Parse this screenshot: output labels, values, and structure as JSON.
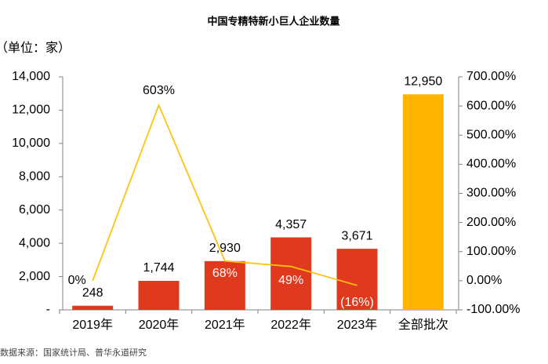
{
  "chart_data": {
    "type": "bar",
    "title": "中国专精特新小巨人企业数量",
    "unit_label": "（单位：家）",
    "source": "数据来源：国家统计局、普华永道研究",
    "categories": [
      "2019年",
      "2020年",
      "2021年",
      "2022年",
      "2023年",
      "全部批次"
    ],
    "series": [
      {
        "type": "bar",
        "colors": [
          "#e03a1e",
          "#e03a1e",
          "#e03a1e",
          "#e03a1e",
          "#e03a1e",
          "#ffb400"
        ],
        "values": [
          248,
          1744,
          2930,
          4357,
          3671,
          12950
        ],
        "value_labels": [
          "248",
          "1,744",
          "2,930",
          "4,357",
          "3,671",
          "12,950"
        ]
      },
      {
        "type": "line",
        "axis": "y2",
        "color": "#ffc20e",
        "values": [
          0,
          603,
          68,
          49,
          -16,
          null
        ],
        "value_labels": [
          "0%",
          "603%",
          "68%",
          "49%",
          "(16%)",
          null
        ]
      }
    ],
    "ylim": [
      0,
      14000
    ],
    "yticks": [
      {
        "value": 0,
        "label": "-"
      },
      {
        "value": 2000,
        "label": "2,000"
      },
      {
        "value": 4000,
        "label": "4,000"
      },
      {
        "value": 6000,
        "label": "6,000"
      },
      {
        "value": 8000,
        "label": "8,000"
      },
      {
        "value": 10000,
        "label": "10,000"
      },
      {
        "value": 12000,
        "label": "12,000"
      },
      {
        "value": 14000,
        "label": "14,000"
      }
    ],
    "y2lim": [
      -100,
      700
    ],
    "y2ticks": [
      {
        "value": -100,
        "label": "-100.00%"
      },
      {
        "value": 0,
        "label": "0.00%"
      },
      {
        "value": 100,
        "label": "100.00%"
      },
      {
        "value": 200,
        "label": "200.00%"
      },
      {
        "value": 300,
        "label": "300.00%"
      },
      {
        "value": 400,
        "label": "400.00%"
      },
      {
        "value": 500,
        "label": "500.00%"
      },
      {
        "value": 600,
        "label": "600.00%"
      },
      {
        "value": 700,
        "label": "700.00%"
      }
    ]
  }
}
